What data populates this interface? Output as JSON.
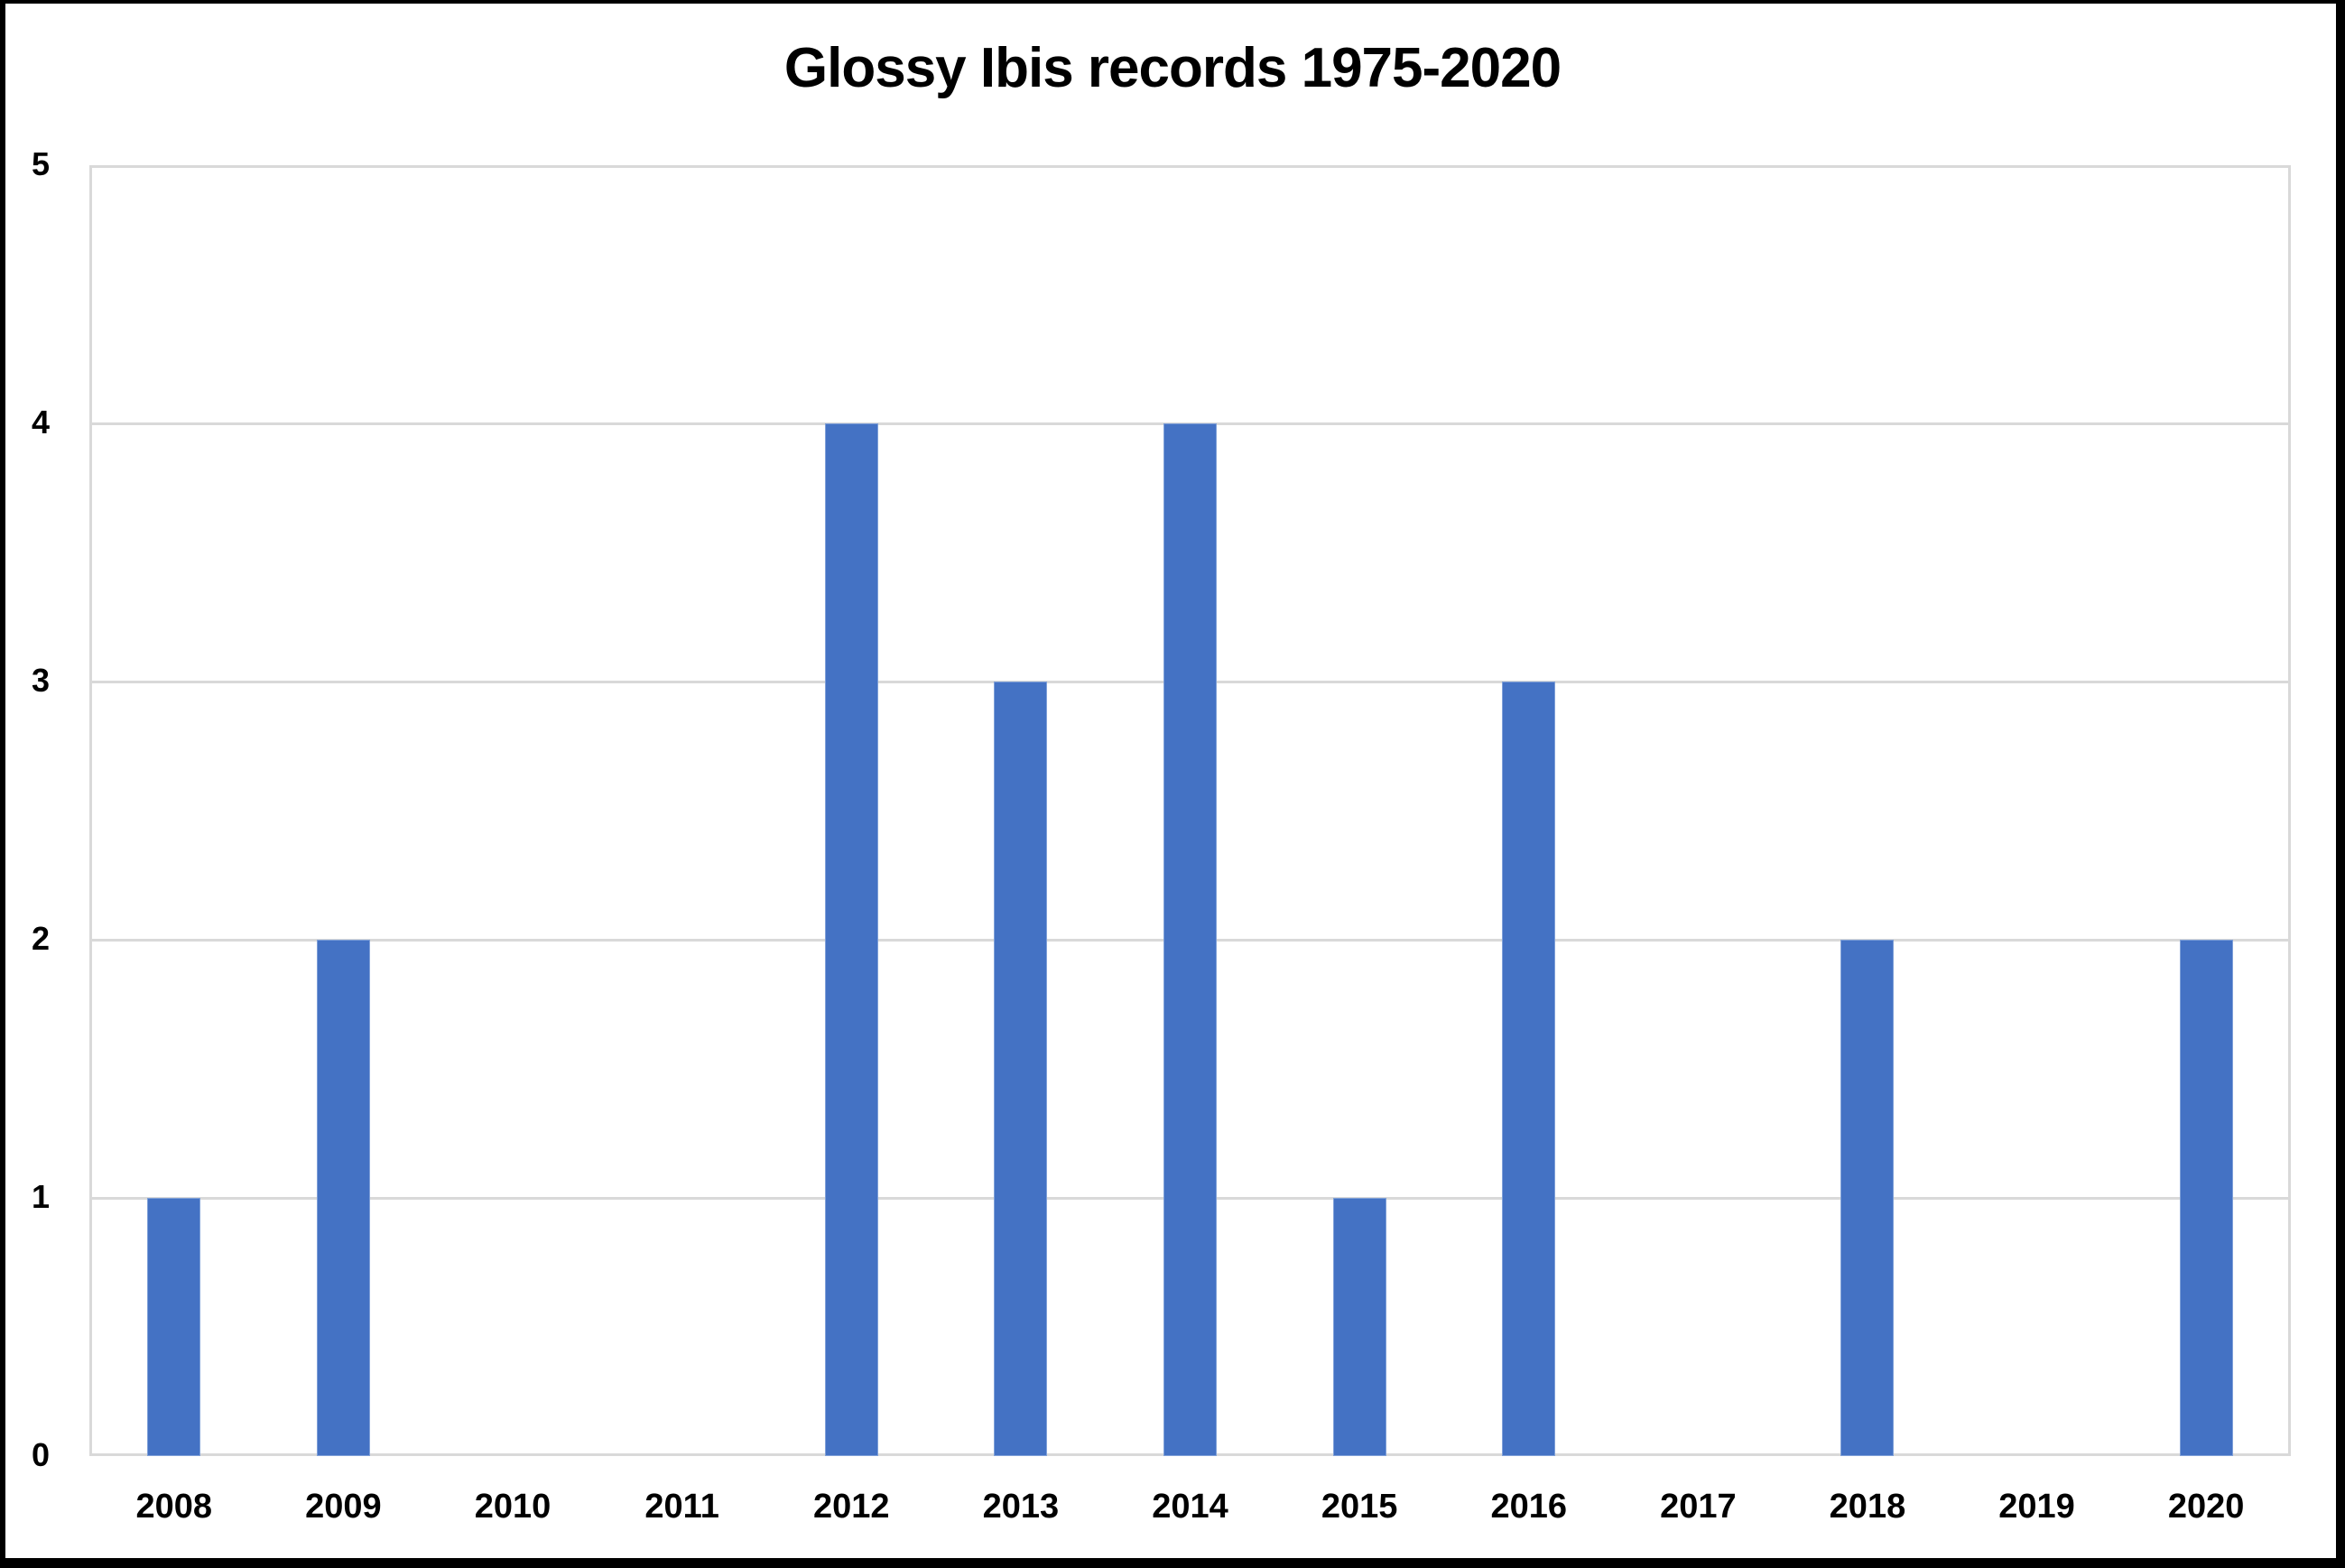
{
  "chart": {
    "title": "Glossy Ibis records 1975-2020",
    "bar_color": "#4472C4",
    "gridline_color": "#d9d9d9"
  },
  "chart_data": {
    "type": "bar",
    "title": "Glossy Ibis records 1975-2020",
    "xlabel": "",
    "ylabel": "",
    "categories": [
      "2008",
      "2009",
      "2010",
      "2011",
      "2012",
      "2013",
      "2014",
      "2015",
      "2016",
      "2017",
      "2018",
      "2019",
      "2020"
    ],
    "values": [
      1,
      2,
      0,
      0,
      4,
      3,
      4,
      1,
      3,
      0,
      2,
      0,
      2
    ],
    "ylim": [
      0,
      5
    ],
    "yticks": [
      "0",
      "1",
      "2",
      "3",
      "4",
      "5"
    ],
    "grid": true,
    "legend": null
  }
}
